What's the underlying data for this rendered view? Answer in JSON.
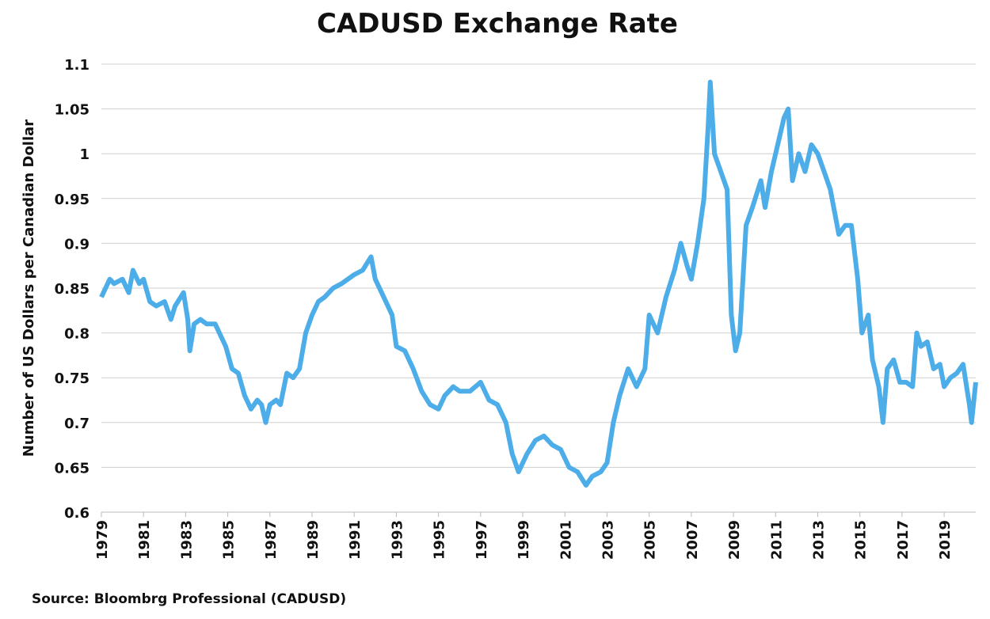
{
  "chart_data": {
    "type": "line",
    "title": "CADUSD Exchange Rate",
    "xlabel": "",
    "ylabel": "Number of US Dollars per Canadian  Dollar",
    "source": "Source: Bloombrg Professional  (CADUSD)",
    "ylim": [
      0.6,
      1.1
    ],
    "xlim": [
      1979,
      2020.5
    ],
    "grid": true,
    "yticks": [
      "0.6",
      "0.65",
      "0.7",
      "0.75",
      "0.8",
      "0.85",
      "0.9",
      "0.95",
      "1",
      "1.05",
      "1.1"
    ],
    "xticks": [
      "1979",
      "1981",
      "1983",
      "1985",
      "1987",
      "1989",
      "1991",
      "1993",
      "1995",
      "1997",
      "1999",
      "2001",
      "2003",
      "2005",
      "2007",
      "2009",
      "2011",
      "2013",
      "2015",
      "2017",
      "2019"
    ],
    "color": "#4DADE8",
    "series": [
      {
        "name": "CADUSD",
        "x": [
          1979.0,
          1979.2,
          1979.4,
          1979.6,
          1980.0,
          1980.3,
          1980.5,
          1980.8,
          1981.0,
          1981.3,
          1981.6,
          1982.0,
          1982.3,
          1982.5,
          1982.9,
          1983.1,
          1983.2,
          1983.4,
          1983.7,
          1984.0,
          1984.4,
          1984.6,
          1984.9,
          1985.2,
          1985.5,
          1985.8,
          1986.1,
          1986.4,
          1986.6,
          1986.8,
          1987.0,
          1987.3,
          1987.5,
          1987.8,
          1988.1,
          1988.4,
          1988.7,
          1989.0,
          1989.3,
          1989.6,
          1990.0,
          1990.4,
          1990.7,
          1991.0,
          1991.4,
          1991.8,
          1992.0,
          1992.4,
          1992.8,
          1993.0,
          1993.4,
          1993.8,
          1994.2,
          1994.6,
          1995.0,
          1995.3,
          1995.7,
          1996.0,
          1996.5,
          1997.0,
          1997.4,
          1997.8,
          1998.2,
          1998.5,
          1998.8,
          1999.2,
          1999.6,
          2000.0,
          2000.4,
          2000.8,
          2001.2,
          2001.6,
          2002.0,
          2002.3,
          2002.7,
          2003.0,
          2003.3,
          2003.6,
          2004.0,
          2004.4,
          2004.8,
          2005.0,
          2005.4,
          2005.8,
          2006.2,
          2006.5,
          2006.8,
          2007.0,
          2007.3,
          2007.6,
          2007.8,
          2007.9,
          2008.1,
          2008.4,
          2008.7,
          2008.9,
          2009.1,
          2009.3,
          2009.6,
          2009.9,
          2010.3,
          2010.5,
          2010.8,
          2011.0,
          2011.4,
          2011.6,
          2011.8,
          2012.1,
          2012.4,
          2012.7,
          2013.0,
          2013.3,
          2013.6,
          2014.0,
          2014.3,
          2014.6,
          2014.9,
          2015.1,
          2015.4,
          2015.6,
          2015.9,
          2016.1,
          2016.3,
          2016.6,
          2016.9,
          2017.2,
          2017.5,
          2017.7,
          2017.9,
          2018.2,
          2018.5,
          2018.8,
          2019.0,
          2019.3,
          2019.6,
          2019.9,
          2020.2,
          2020.3,
          2020.5
        ],
        "values": [
          0.84,
          0.85,
          0.86,
          0.855,
          0.86,
          0.845,
          0.87,
          0.855,
          0.86,
          0.835,
          0.83,
          0.835,
          0.815,
          0.83,
          0.845,
          0.815,
          0.78,
          0.81,
          0.815,
          0.81,
          0.81,
          0.8,
          0.785,
          0.76,
          0.755,
          0.73,
          0.715,
          0.725,
          0.72,
          0.7,
          0.72,
          0.725,
          0.72,
          0.755,
          0.75,
          0.76,
          0.8,
          0.82,
          0.835,
          0.84,
          0.85,
          0.855,
          0.86,
          0.865,
          0.87,
          0.885,
          0.86,
          0.84,
          0.82,
          0.785,
          0.78,
          0.76,
          0.735,
          0.72,
          0.715,
          0.73,
          0.74,
          0.735,
          0.735,
          0.745,
          0.725,
          0.72,
          0.7,
          0.665,
          0.645,
          0.665,
          0.68,
          0.685,
          0.675,
          0.67,
          0.65,
          0.645,
          0.63,
          0.64,
          0.645,
          0.655,
          0.7,
          0.73,
          0.76,
          0.74,
          0.76,
          0.82,
          0.8,
          0.84,
          0.87,
          0.9,
          0.875,
          0.86,
          0.9,
          0.95,
          1.03,
          1.08,
          1.0,
          0.98,
          0.96,
          0.82,
          0.78,
          0.8,
          0.92,
          0.94,
          0.97,
          0.94,
          0.98,
          1.0,
          1.04,
          1.05,
          0.97,
          1.0,
          0.98,
          1.01,
          1.0,
          0.98,
          0.96,
          0.91,
          0.92,
          0.92,
          0.86,
          0.8,
          0.82,
          0.77,
          0.74,
          0.7,
          0.76,
          0.77,
          0.745,
          0.745,
          0.74,
          0.8,
          0.785,
          0.79,
          0.76,
          0.765,
          0.74,
          0.75,
          0.755,
          0.765,
          0.72,
          0.7,
          0.745
        ]
      }
    ]
  }
}
